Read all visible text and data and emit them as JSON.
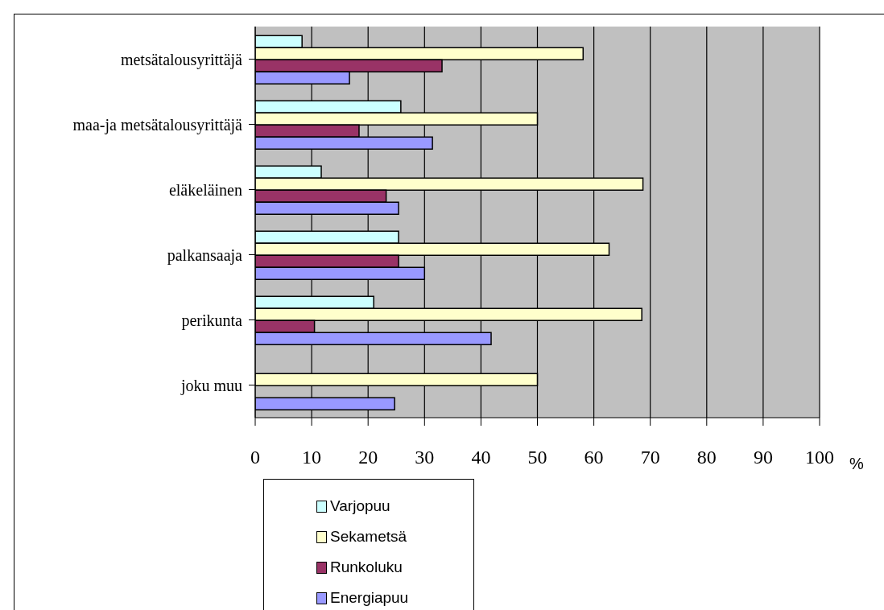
{
  "chart_data": {
    "type": "bar",
    "orientation": "horizontal",
    "xlabel": "%",
    "categories": [
      "metsätalousyrittäjä",
      "maa-ja metsätalousyrittäjä",
      "eläkeläinen",
      "palkansaaja",
      "perikunta",
      "joku muu"
    ],
    "series": [
      {
        "name": "Varjopuu",
        "color": "#ccffff",
        "values": [
          8.3,
          25.8,
          11.7,
          25.4,
          21.0,
          null
        ]
      },
      {
        "name": "Sekametsä",
        "color": "#ffffcc",
        "values": [
          58.1,
          50,
          68.7,
          62.7,
          68.5,
          50
        ]
      },
      {
        "name": "Runkoluku",
        "color": "#993366",
        "values": [
          33.1,
          18.4,
          23.2,
          25.4,
          10.5,
          null
        ]
      },
      {
        "name": "Energiapuu",
        "color": "#9999ff",
        "values": [
          16.7,
          31.4,
          25.4,
          30.0,
          41.8,
          24.7
        ]
      }
    ],
    "xlim": [
      0,
      100
    ],
    "xticks": [
      0,
      10,
      20,
      30,
      40,
      50,
      60,
      70,
      80,
      90,
      100
    ],
    "grid": "x",
    "legend": "bottom"
  }
}
